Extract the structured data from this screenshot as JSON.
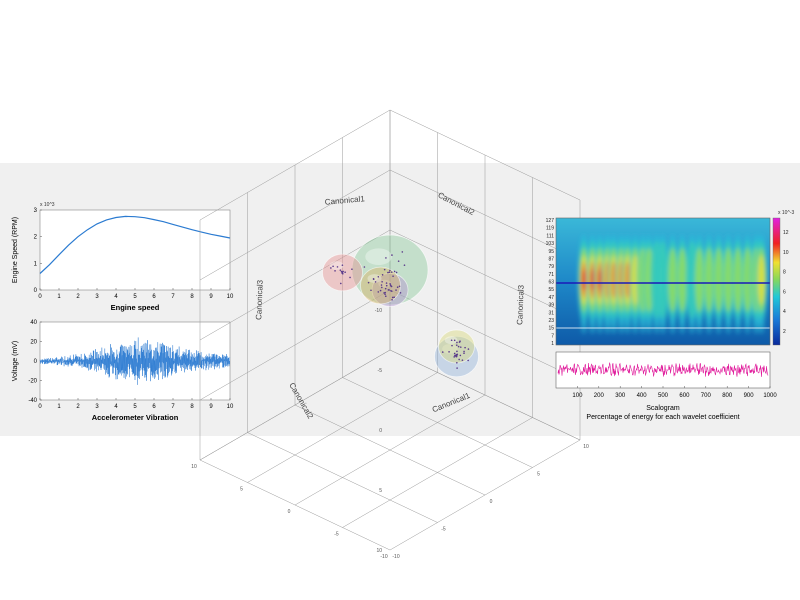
{
  "chart_data": [
    {
      "type": "line",
      "title": "Engine speed",
      "xlabel": "",
      "ylabel": "Engine Speed (RPM)",
      "y_exponent": "x 10^3",
      "xlim": [
        0,
        10
      ],
      "ylim": [
        0,
        3
      ],
      "x_ticks": [
        "0",
        "1",
        "2",
        "3",
        "4",
        "5",
        "6",
        "7",
        "8",
        "9",
        "10"
      ],
      "y_ticks": [
        "0",
        "1",
        "2",
        "3"
      ],
      "series": [
        {
          "color": "#2b7bd1",
          "x": [
            0,
            0.5,
            1,
            1.5,
            2,
            2.5,
            3,
            3.5,
            4,
            4.5,
            5,
            5.5,
            6,
            6.5,
            7,
            7.5,
            8,
            8.5,
            9,
            9.5,
            10
          ],
          "y": [
            0.62,
            0.95,
            1.32,
            1.68,
            2.0,
            2.26,
            2.48,
            2.63,
            2.72,
            2.76,
            2.75,
            2.71,
            2.64,
            2.56,
            2.46,
            2.36,
            2.26,
            2.17,
            2.09,
            2.02,
            1.95
          ]
        }
      ]
    },
    {
      "type": "line",
      "title": "Accelerometer Vibration",
      "xlabel": "",
      "ylabel": "Voltage (mV)",
      "xlim": [
        0,
        10
      ],
      "ylim": [
        -40,
        40
      ],
      "x_ticks": [
        "0",
        "1",
        "2",
        "3",
        "4",
        "5",
        "6",
        "7",
        "8",
        "9",
        "10"
      ],
      "y_ticks": [
        "-40",
        "-20",
        "0",
        "20",
        "40"
      ],
      "envelope_amplitude": {
        "x": [
          0,
          1,
          2,
          3,
          4,
          5,
          6,
          7,
          8,
          9,
          10
        ],
        "y": [
          3,
          5,
          8,
          13,
          20,
          25,
          22,
          17,
          12,
          9,
          7
        ]
      },
      "series": [
        {
          "color": "#2b7bd1"
        }
      ]
    },
    {
      "type": "scatter",
      "subtype": "3d-cluster-ellipsoids",
      "axis_labels": [
        "Canonical1",
        "Canonical2",
        "Canonical3"
      ],
      "tick_labels": [
        "10",
        "5",
        "0",
        "-5",
        "-10"
      ],
      "clusters": [
        {
          "color": "#8fb0d8",
          "center": [
            -5,
            2,
            -3
          ]
        },
        {
          "color": "#d8d878",
          "center": [
            -4,
            3,
            -3
          ]
        },
        {
          "color": "#88c898",
          "center": [
            0,
            0,
            2
          ]
        },
        {
          "color": "#b090d0",
          "center": [
            1,
            1,
            0
          ]
        },
        {
          "color": "#d8b060",
          "center": [
            2,
            1,
            0
          ]
        },
        {
          "color": "#e89090",
          "center": [
            4,
            -1,
            1
          ]
        }
      ]
    },
    {
      "type": "heatmap",
      "title": "Scalogram",
      "caption": "Percentage of energy for each wavelet coefficient",
      "xlim": [
        0,
        1000
      ],
      "x_ticks": [
        "100",
        "200",
        "300",
        "400",
        "500",
        "600",
        "700",
        "800",
        "900",
        "1000"
      ],
      "y_ticks": [
        "127",
        "119",
        "111",
        "103",
        "95",
        "87",
        "79",
        "71",
        "63",
        "55",
        "47",
        "39",
        "31",
        "23",
        "15",
        "7",
        "1"
      ],
      "colorbar": {
        "exponent": "x 10^-3",
        "ticks": [
          "2",
          "4",
          "6",
          "8",
          "10",
          "12"
        ]
      },
      "bands_x": [
        130,
        170,
        205,
        240,
        270,
        305,
        335,
        370,
        405,
        435,
        470,
        500,
        545,
        590,
        635,
        670,
        715,
        760,
        805,
        850,
        895,
        935,
        960
      ],
      "bands_intensity": [
        0.95,
        0.98,
        0.95,
        0.9,
        0.88,
        0.85,
        0.8,
        0.6,
        0.5,
        0.5,
        0.4,
        0.4,
        0.45,
        0.45,
        0.4,
        0.45,
        0.5,
        0.5,
        0.45,
        0.5,
        0.5,
        0.55,
        0.6
      ],
      "signal_color": "#e0189a"
    }
  ]
}
